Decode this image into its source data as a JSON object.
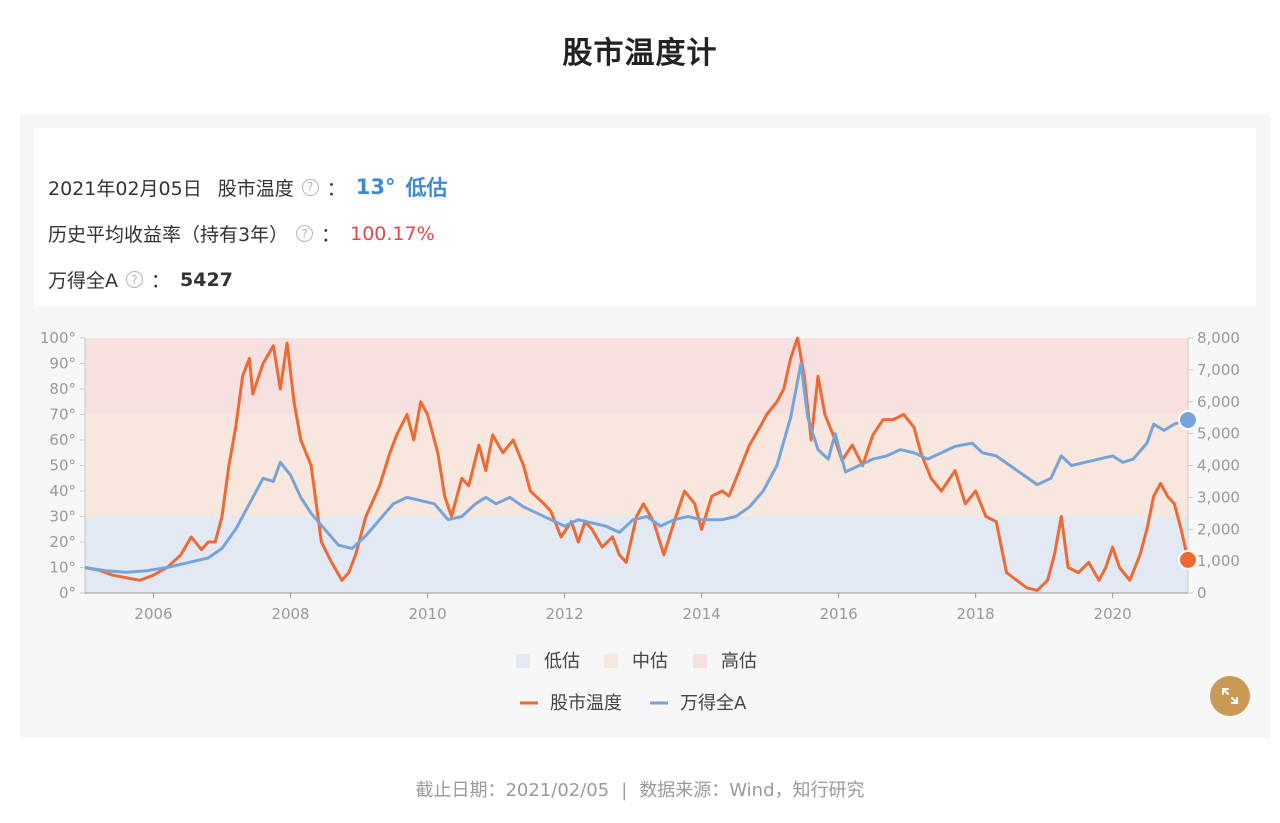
{
  "page": {
    "title": "股市温度计"
  },
  "info": {
    "date": "2021年02月05日",
    "temp_label": "股市温度",
    "colon": "：",
    "temp_value": "13°",
    "temp_level": "低估",
    "return_label": "历史平均收益率（持有3年）",
    "return_value": "100.17%",
    "index_label": "万得全A",
    "index_value": "5427",
    "help_glyph": "?"
  },
  "footer": {
    "cutoff": "截止日期：2021/02/05",
    "separator": "|",
    "source": "数据来源：Wind，知行研究"
  },
  "colors": {
    "temperature": "#ee6a35",
    "index": "#77a4d8",
    "zone_low": "#e3e9f3",
    "zone_mid": "#f8e7de",
    "zone_high": "#f7e0df",
    "accent_blue": "#3f8ad6",
    "accent_red": "#e24848",
    "expand_button": "#c89a56"
  },
  "icons": {
    "help": "question-circle-icon",
    "expand": "expand-arrows-icon"
  },
  "chart_data": {
    "type": "line",
    "x_ticks": [
      "2006",
      "2008",
      "2010",
      "2012",
      "2014",
      "2016",
      "2018",
      "2020"
    ],
    "y_left_ticks": [
      "0°",
      "10°",
      "20°",
      "30°",
      "40°",
      "50°",
      "60°",
      "70°",
      "80°",
      "90°",
      "100°"
    ],
    "y_right_ticks": [
      "0",
      "1,000",
      "2,000",
      "3,000",
      "4,000",
      "5,000",
      "6,000",
      "7,000",
      "8,000"
    ],
    "xlim": [
      2005.0,
      2021.1
    ],
    "ylim_left": [
      0,
      100
    ],
    "ylim_right": [
      0,
      8000
    ],
    "zones": [
      {
        "name": "低估",
        "from": 0,
        "to": 30
      },
      {
        "name": "中估",
        "from": 30,
        "to": 70
      },
      {
        "name": "高估",
        "from": 70,
        "to": 100
      }
    ],
    "legend_zones": [
      "低估",
      "中估",
      "高估"
    ],
    "legend_series": [
      "股市温度",
      "万得全A"
    ],
    "grid": false,
    "series": [
      {
        "name": "股市温度",
        "axis": "left",
        "points": [
          [
            2005.0,
            10
          ],
          [
            2005.2,
            9
          ],
          [
            2005.4,
            7
          ],
          [
            2005.6,
            6
          ],
          [
            2005.8,
            5
          ],
          [
            2006.0,
            7
          ],
          [
            2006.2,
            10
          ],
          [
            2006.4,
            15
          ],
          [
            2006.55,
            22
          ],
          [
            2006.7,
            17
          ],
          [
            2006.8,
            20
          ],
          [
            2006.9,
            20
          ],
          [
            2007.0,
            30
          ],
          [
            2007.1,
            50
          ],
          [
            2007.2,
            65
          ],
          [
            2007.3,
            85
          ],
          [
            2007.4,
            92
          ],
          [
            2007.45,
            78
          ],
          [
            2007.6,
            90
          ],
          [
            2007.75,
            97
          ],
          [
            2007.85,
            80
          ],
          [
            2007.95,
            98
          ],
          [
            2008.05,
            75
          ],
          [
            2008.15,
            60
          ],
          [
            2008.3,
            50
          ],
          [
            2008.45,
            20
          ],
          [
            2008.6,
            12
          ],
          [
            2008.75,
            5
          ],
          [
            2008.85,
            8
          ],
          [
            2008.95,
            15
          ],
          [
            2009.1,
            30
          ],
          [
            2009.3,
            42
          ],
          [
            2009.45,
            55
          ],
          [
            2009.55,
            62
          ],
          [
            2009.7,
            70
          ],
          [
            2009.8,
            60
          ],
          [
            2009.9,
            75
          ],
          [
            2010.0,
            70
          ],
          [
            2010.15,
            55
          ],
          [
            2010.25,
            38
          ],
          [
            2010.35,
            30
          ],
          [
            2010.5,
            45
          ],
          [
            2010.6,
            42
          ],
          [
            2010.75,
            58
          ],
          [
            2010.85,
            48
          ],
          [
            2010.95,
            62
          ],
          [
            2011.1,
            55
          ],
          [
            2011.25,
            60
          ],
          [
            2011.4,
            50
          ],
          [
            2011.5,
            40
          ],
          [
            2011.7,
            35
          ],
          [
            2011.8,
            32
          ],
          [
            2011.95,
            22
          ],
          [
            2012.1,
            28
          ],
          [
            2012.2,
            20
          ],
          [
            2012.3,
            28
          ],
          [
            2012.4,
            25
          ],
          [
            2012.55,
            18
          ],
          [
            2012.7,
            22
          ],
          [
            2012.8,
            15
          ],
          [
            2012.9,
            12
          ],
          [
            2013.05,
            30
          ],
          [
            2013.15,
            35
          ],
          [
            2013.3,
            28
          ],
          [
            2013.45,
            15
          ],
          [
            2013.6,
            28
          ],
          [
            2013.75,
            40
          ],
          [
            2013.9,
            35
          ],
          [
            2014.0,
            25
          ],
          [
            2014.15,
            38
          ],
          [
            2014.3,
            40
          ],
          [
            2014.4,
            38
          ],
          [
            2014.55,
            48
          ],
          [
            2014.7,
            58
          ],
          [
            2014.85,
            65
          ],
          [
            2014.95,
            70
          ],
          [
            2015.1,
            75
          ],
          [
            2015.2,
            80
          ],
          [
            2015.3,
            92
          ],
          [
            2015.4,
            100
          ],
          [
            2015.5,
            85
          ],
          [
            2015.6,
            60
          ],
          [
            2015.7,
            85
          ],
          [
            2015.8,
            70
          ],
          [
            2015.95,
            60
          ],
          [
            2016.05,
            52
          ],
          [
            2016.2,
            58
          ],
          [
            2016.35,
            50
          ],
          [
            2016.5,
            62
          ],
          [
            2016.65,
            68
          ],
          [
            2016.8,
            68
          ],
          [
            2016.95,
            70
          ],
          [
            2017.1,
            65
          ],
          [
            2017.2,
            55
          ],
          [
            2017.35,
            45
          ],
          [
            2017.5,
            40
          ],
          [
            2017.7,
            48
          ],
          [
            2017.85,
            35
          ],
          [
            2018.0,
            40
          ],
          [
            2018.15,
            30
          ],
          [
            2018.3,
            28
          ],
          [
            2018.45,
            8
          ],
          [
            2018.6,
            5
          ],
          [
            2018.75,
            2
          ],
          [
            2018.9,
            1
          ],
          [
            2019.05,
            5
          ],
          [
            2019.15,
            15
          ],
          [
            2019.25,
            30
          ],
          [
            2019.35,
            10
          ],
          [
            2019.5,
            8
          ],
          [
            2019.65,
            12
          ],
          [
            2019.8,
            5
          ],
          [
            2019.9,
            10
          ],
          [
            2020.0,
            18
          ],
          [
            2020.1,
            10
          ],
          [
            2020.25,
            5
          ],
          [
            2020.4,
            15
          ],
          [
            2020.5,
            25
          ],
          [
            2020.6,
            38
          ],
          [
            2020.7,
            43
          ],
          [
            2020.8,
            38
          ],
          [
            2020.9,
            35
          ],
          [
            2021.0,
            25
          ],
          [
            2021.1,
            13
          ]
        ]
      },
      {
        "name": "万得全A",
        "axis": "right",
        "points": [
          [
            2005.0,
            800
          ],
          [
            2005.3,
            700
          ],
          [
            2005.6,
            650
          ],
          [
            2005.9,
            700
          ],
          [
            2006.2,
            800
          ],
          [
            2006.5,
            950
          ],
          [
            2006.8,
            1100
          ],
          [
            2007.0,
            1400
          ],
          [
            2007.2,
            2000
          ],
          [
            2007.4,
            2800
          ],
          [
            2007.6,
            3600
          ],
          [
            2007.75,
            3500
          ],
          [
            2007.85,
            4100
          ],
          [
            2008.0,
            3700
          ],
          [
            2008.15,
            3000
          ],
          [
            2008.3,
            2500
          ],
          [
            2008.5,
            2000
          ],
          [
            2008.7,
            1500
          ],
          [
            2008.9,
            1400
          ],
          [
            2009.1,
            1800
          ],
          [
            2009.3,
            2300
          ],
          [
            2009.5,
            2800
          ],
          [
            2009.7,
            3000
          ],
          [
            2009.9,
            2900
          ],
          [
            2010.1,
            2800
          ],
          [
            2010.3,
            2300
          ],
          [
            2010.5,
            2400
          ],
          [
            2010.7,
            2800
          ],
          [
            2010.85,
            3000
          ],
          [
            2011.0,
            2800
          ],
          [
            2011.2,
            3000
          ],
          [
            2011.4,
            2700
          ],
          [
            2011.6,
            2500
          ],
          [
            2011.8,
            2300
          ],
          [
            2012.0,
            2100
          ],
          [
            2012.2,
            2300
          ],
          [
            2012.4,
            2200
          ],
          [
            2012.6,
            2100
          ],
          [
            2012.8,
            1900
          ],
          [
            2013.0,
            2300
          ],
          [
            2013.2,
            2400
          ],
          [
            2013.4,
            2100
          ],
          [
            2013.6,
            2300
          ],
          [
            2013.8,
            2400
          ],
          [
            2014.0,
            2300
          ],
          [
            2014.3,
            2300
          ],
          [
            2014.5,
            2400
          ],
          [
            2014.7,
            2700
          ],
          [
            2014.9,
            3200
          ],
          [
            2015.1,
            4000
          ],
          [
            2015.3,
            5500
          ],
          [
            2015.45,
            7200
          ],
          [
            2015.55,
            5500
          ],
          [
            2015.7,
            4500
          ],
          [
            2015.85,
            4200
          ],
          [
            2015.95,
            5000
          ],
          [
            2016.1,
            3800
          ],
          [
            2016.3,
            4000
          ],
          [
            2016.5,
            4200
          ],
          [
            2016.7,
            4300
          ],
          [
            2016.9,
            4500
          ],
          [
            2017.1,
            4400
          ],
          [
            2017.3,
            4200
          ],
          [
            2017.5,
            4400
          ],
          [
            2017.7,
            4600
          ],
          [
            2017.95,
            4700
          ],
          [
            2018.1,
            4400
          ],
          [
            2018.3,
            4300
          ],
          [
            2018.5,
            4000
          ],
          [
            2018.7,
            3700
          ],
          [
            2018.9,
            3400
          ],
          [
            2019.1,
            3600
          ],
          [
            2019.25,
            4300
          ],
          [
            2019.4,
            4000
          ],
          [
            2019.6,
            4100
          ],
          [
            2019.8,
            4200
          ],
          [
            2020.0,
            4300
          ],
          [
            2020.15,
            4100
          ],
          [
            2020.3,
            4200
          ],
          [
            2020.5,
            4700
          ],
          [
            2020.6,
            5300
          ],
          [
            2020.75,
            5100
          ],
          [
            2020.9,
            5300
          ],
          [
            2021.1,
            5427
          ]
        ]
      }
    ]
  }
}
